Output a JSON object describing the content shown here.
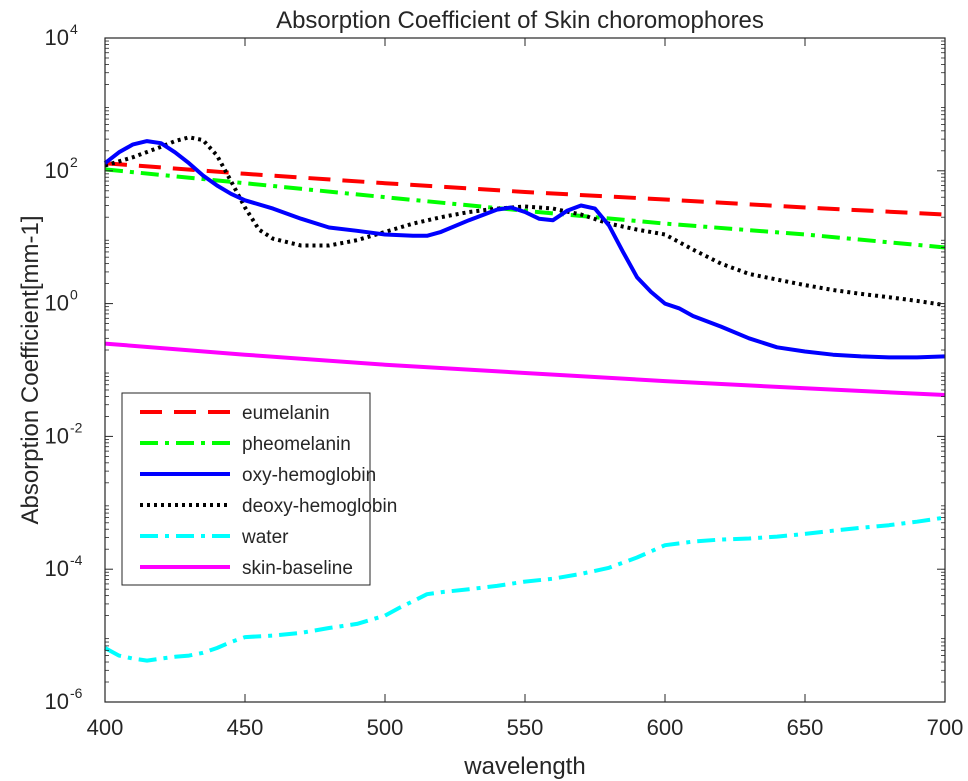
{
  "chart_data": {
    "type": "line",
    "title": "Absorption Coefficient of Skin choromophores",
    "xlabel": "wavelength",
    "ylabel": "Absorption Coefficient[mm-1]",
    "xlim": [
      400,
      700
    ],
    "ylim": [
      1e-06,
      10000
    ],
    "yscale": "log",
    "grid": false,
    "legend_position": "center-left",
    "x_ticks": [
      400,
      450,
      500,
      550,
      600,
      650,
      700
    ],
    "x_tick_labels": [
      "400",
      "450",
      "500",
      "550",
      "600",
      "650",
      "700"
    ],
    "y_ticks": [
      1e-06,
      0.0001,
      0.01,
      1,
      100,
      10000
    ],
    "y_tick_labels": [
      {
        "base": "10",
        "exp": "-6"
      },
      {
        "base": "10",
        "exp": "-4"
      },
      {
        "base": "10",
        "exp": "-2"
      },
      {
        "base": "10",
        "exp": "0"
      },
      {
        "base": "10",
        "exp": "2"
      },
      {
        "base": "10",
        "exp": "4"
      }
    ],
    "series": [
      {
        "name": "eumelanin",
        "color": "#ff0000",
        "style": "dashed",
        "x": [
          400,
          450,
          500,
          550,
          600,
          650,
          700
        ],
        "y": [
          130,
          90,
          65,
          48,
          37,
          28,
          22
        ]
      },
      {
        "name": "pheomelanin",
        "color": "#00ff00",
        "style": "dashdot",
        "x": [
          400,
          450,
          500,
          550,
          600,
          650,
          700
        ],
        "y": [
          105,
          65,
          40,
          25,
          16,
          11,
          7
        ]
      },
      {
        "name": "oxy-hemoglobin",
        "color": "#0000ff",
        "style": "solid",
        "x": [
          400,
          405,
          410,
          415,
          420,
          425,
          430,
          435,
          440,
          445,
          450,
          460,
          470,
          480,
          490,
          500,
          510,
          515,
          520,
          530,
          540,
          545,
          550,
          555,
          560,
          565,
          570,
          575,
          580,
          585,
          590,
          595,
          600,
          605,
          610,
          620,
          630,
          640,
          650,
          660,
          670,
          680,
          690,
          700
        ],
        "y": [
          130,
          190,
          250,
          280,
          260,
          190,
          130,
          85,
          60,
          45,
          36,
          27,
          19,
          14,
          12.5,
          11,
          10.5,
          10.5,
          12,
          18,
          26,
          28,
          24,
          19,
          18,
          25,
          30,
          27,
          15,
          6,
          2.5,
          1.5,
          1.0,
          0.85,
          0.65,
          0.45,
          0.3,
          0.22,
          0.19,
          0.17,
          0.16,
          0.155,
          0.155,
          0.16
        ]
      },
      {
        "name": "deoxy-hemoglobin",
        "color": "#000000",
        "style": "dotted",
        "x": [
          400,
          410,
          420,
          425,
          430,
          435,
          440,
          445,
          450,
          455,
          460,
          470,
          480,
          490,
          500,
          510,
          520,
          530,
          540,
          550,
          555,
          560,
          570,
          580,
          590,
          600,
          610,
          620,
          630,
          640,
          650,
          660,
          670,
          680,
          690,
          700
        ],
        "y": [
          120,
          160,
          230,
          280,
          320,
          290,
          170,
          70,
          28,
          13,
          9.5,
          7.5,
          7.5,
          9,
          12,
          16,
          20,
          24,
          27,
          29,
          28,
          27,
          22,
          16,
          13,
          11,
          6.5,
          4,
          2.8,
          2.3,
          1.9,
          1.6,
          1.4,
          1.25,
          1.1,
          0.95
        ]
      },
      {
        "name": "water",
        "color": "#00ffff",
        "style": "dashdot",
        "x": [
          400,
          405,
          410,
          415,
          420,
          425,
          430,
          435,
          440,
          445,
          450,
          460,
          470,
          480,
          490,
          500,
          505,
          510,
          515,
          520,
          530,
          540,
          550,
          560,
          570,
          580,
          590,
          600,
          610,
          620,
          630,
          640,
          650,
          660,
          670,
          680,
          690,
          700
        ],
        "y": [
          6.5e-06,
          5e-06,
          4.5e-06,
          4.2e-06,
          4.5e-06,
          4.8e-06,
          5e-06,
          5.5e-06,
          6.5e-06,
          8e-06,
          9.5e-06,
          1e-05,
          1.1e-05,
          1.3e-05,
          1.5e-05,
          2e-05,
          2.6e-05,
          3.3e-05,
          4.2e-05,
          4.5e-05,
          5e-05,
          5.6e-05,
          6.5e-05,
          7.2e-05,
          8.5e-05,
          0.000105,
          0.00015,
          0.00023,
          0.00026,
          0.00028,
          0.00029,
          0.00031,
          0.00034,
          0.00038,
          0.00042,
          0.00046,
          0.00052,
          0.0006
        ]
      },
      {
        "name": "skin-baseline",
        "color": "#ff00ff",
        "style": "solid",
        "x": [
          400,
          450,
          500,
          550,
          600,
          650,
          700
        ],
        "y": [
          0.25,
          0.17,
          0.12,
          0.09,
          0.068,
          0.053,
          0.042
        ]
      }
    ]
  }
}
